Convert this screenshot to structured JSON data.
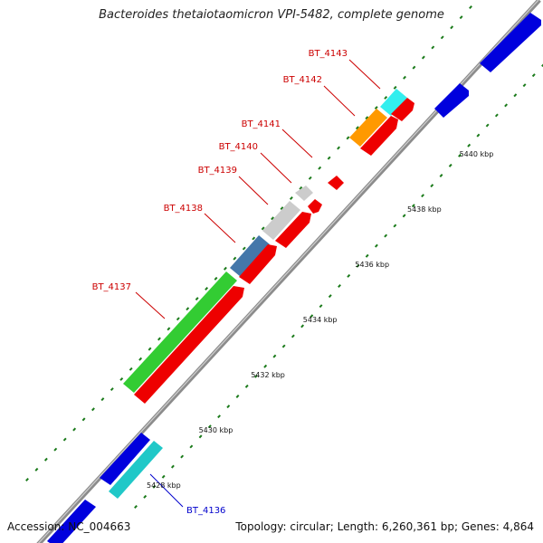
{
  "title": "Bacteroides thetaiotaomicron VPI-5482, complete genome",
  "accession": "Accession: NC_004663",
  "summary": "Topology: circular; Length: 6,260,361 bp; Genes: 4,864",
  "colors": {
    "backbone": "#888888",
    "dots": "#1a7a1a",
    "forward_feature": "#ee0000",
    "reverse_feature": "#0000dd",
    "label_red": "#cc0000",
    "label_blue": "#0000cc"
  },
  "ticks": [
    {
      "kbp": 5428,
      "label": "5428 kbp"
    },
    {
      "kbp": 5430,
      "label": "5430 kbp"
    },
    {
      "kbp": 5432,
      "label": "5432 kbp"
    },
    {
      "kbp": 5434,
      "label": "5434 kbp"
    },
    {
      "kbp": 5436,
      "label": "5436 kbp"
    },
    {
      "kbp": 5438,
      "label": "5438 kbp"
    },
    {
      "kbp": 5440,
      "label": "5440 kbp"
    }
  ],
  "gene_labels": [
    {
      "name": "BT_4136",
      "color": "blue"
    },
    {
      "name": "BT_4137",
      "color": "red"
    },
    {
      "name": "BT_4138",
      "color": "red"
    },
    {
      "name": "BT_4139",
      "color": "red"
    },
    {
      "name": "BT_4140",
      "color": "red"
    },
    {
      "name": "BT_4141",
      "color": "red"
    },
    {
      "name": "BT_4142",
      "color": "red"
    },
    {
      "name": "BT_4143",
      "color": "red"
    }
  ]
}
